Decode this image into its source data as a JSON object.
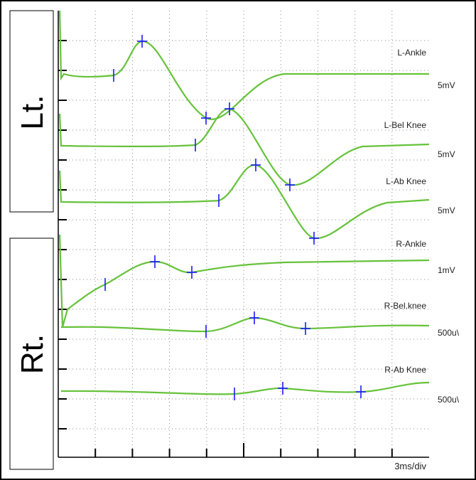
{
  "side_labels": [
    "Lt.",
    "Rt."
  ],
  "traces": [
    {
      "name": "L-Ankle",
      "sensitivity": "5mV"
    },
    {
      "name": "L-Bel Knee",
      "sensitivity": "5mV"
    },
    {
      "name": "L-Ab Knee",
      "sensitivity": "5mV"
    },
    {
      "name": "R-Ankle",
      "sensitivity": "1mV"
    },
    {
      "name": "R-Bel.knee",
      "sensitivity": "500u\\"
    },
    {
      "name": "R-Ab Knee",
      "sensitivity": "500u\\"
    }
  ],
  "timebase": "3ms/div"
}
